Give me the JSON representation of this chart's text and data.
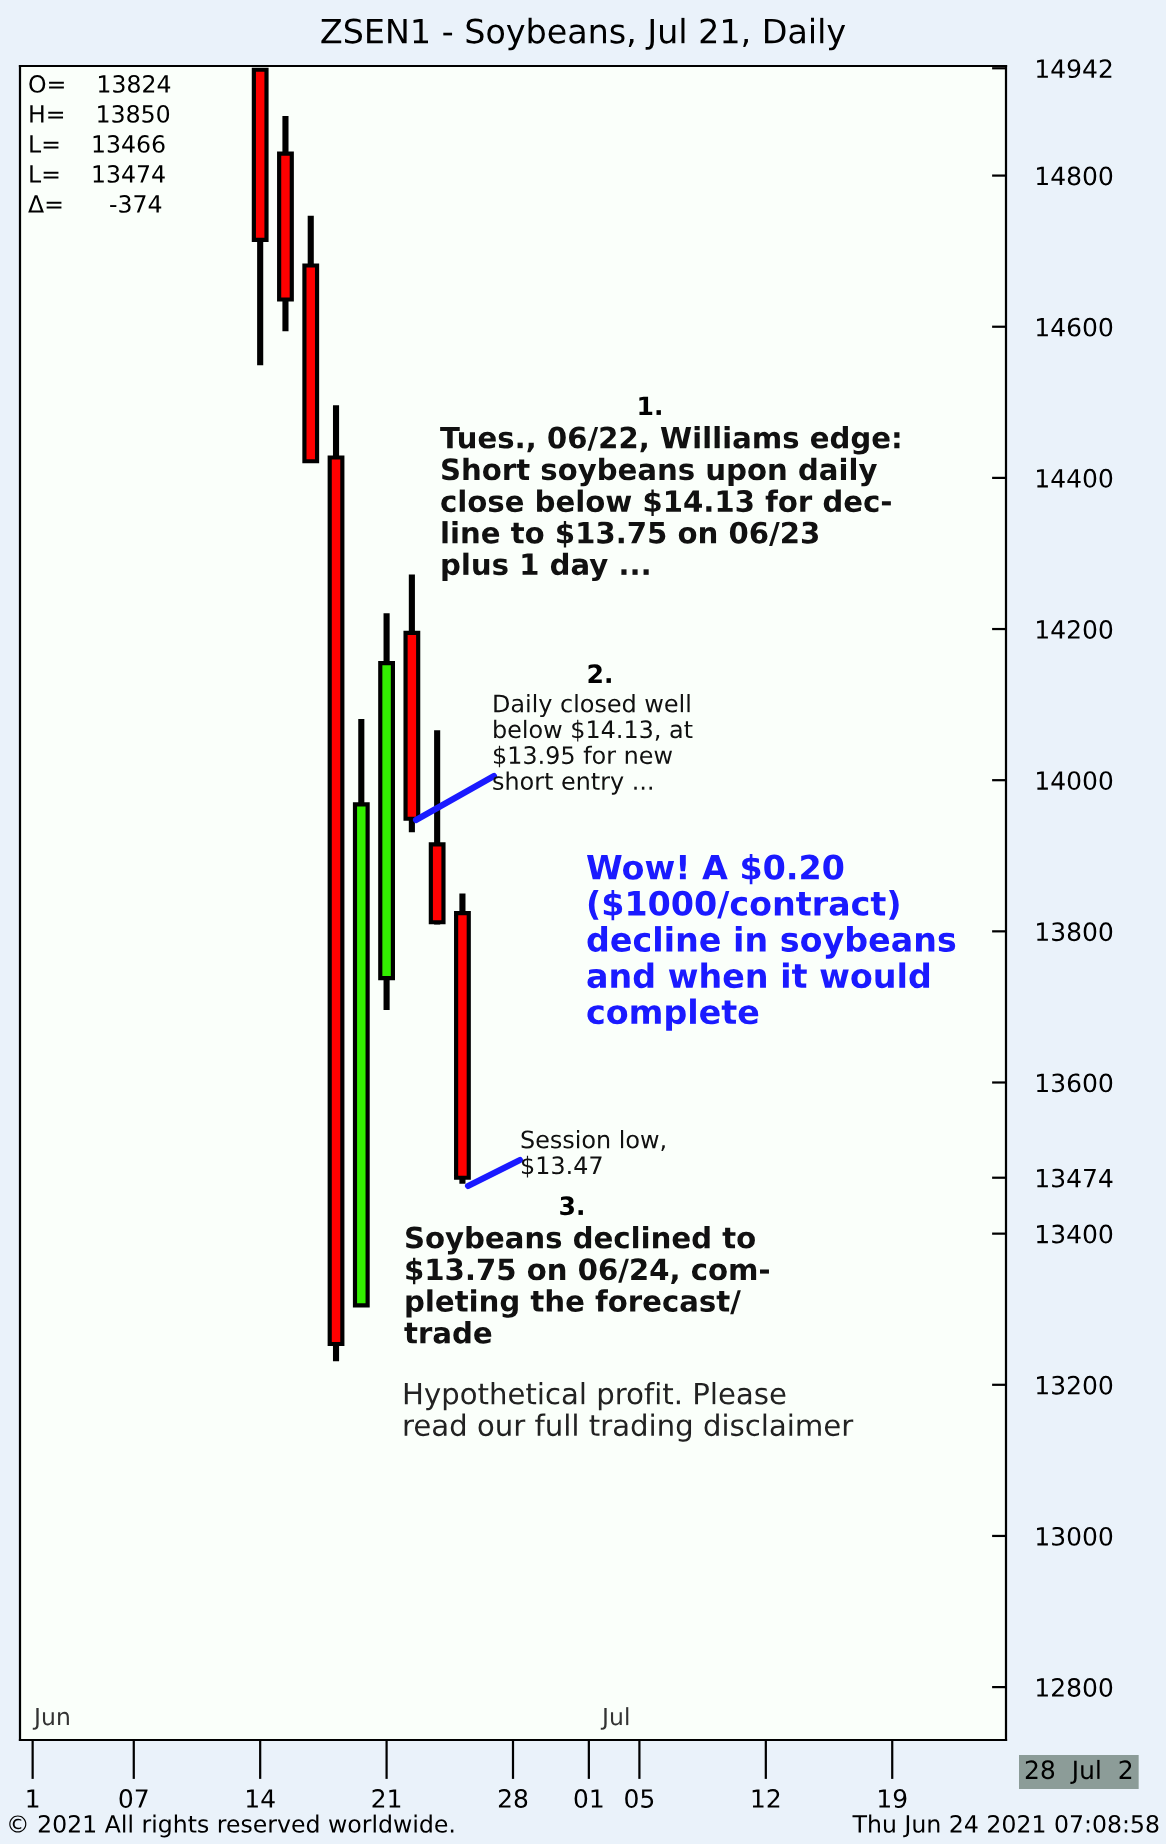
{
  "chart_data": {
    "type": "candlestick",
    "title": "ZSEN1 - Soybeans, Jul 21, Daily",
    "categories": [
      "1",
      null,
      null,
      null,
      "07",
      null,
      null,
      null,
      null,
      "14",
      null,
      null,
      null,
      null,
      "21",
      null,
      null,
      null,
      null,
      "28",
      null,
      null,
      "01",
      null,
      "05",
      null,
      null,
      null,
      null,
      "12",
      null,
      null,
      null,
      null,
      "19",
      null,
      null,
      null,
      null
    ],
    "ohlc": [
      null,
      null,
      null,
      null,
      null,
      null,
      null,
      null,
      null,
      [
        14940,
        14940,
        14549,
        14715
      ],
      [
        14829,
        14879,
        14594,
        14636
      ],
      [
        14681,
        14747,
        14422,
        14422
      ],
      [
        14427,
        14496,
        13231,
        13254
      ],
      [
        13305,
        14081,
        13305,
        13968
      ],
      [
        13738,
        14221,
        13696,
        14155
      ],
      [
        14195,
        14272,
        13931,
        13949
      ],
      [
        13915,
        14066,
        13809,
        13812
      ],
      [
        13824,
        13850,
        13466,
        13474
      ],
      null,
      null,
      null,
      null,
      null,
      null,
      null,
      null,
      null,
      null,
      null,
      null,
      null,
      null,
      null,
      null,
      null,
      null,
      null,
      null,
      null
    ],
    "colors": [
      null,
      null,
      null,
      null,
      null,
      null,
      null,
      null,
      null,
      "#ff0000",
      "#ff0000",
      "#ff0000",
      "#ff0000",
      "#33ee00",
      "#33ee00",
      "#ff0000",
      "#ff0000",
      "#ff0000",
      null,
      null,
      null,
      null,
      null,
      null,
      null,
      null,
      null,
      null,
      null,
      null,
      null,
      null,
      null,
      null,
      null,
      null,
      null,
      null,
      null
    ],
    "ylim": [
      12730,
      14945
    ],
    "yticks": [
      12800,
      13000,
      13200,
      13400,
      13474,
      13600,
      13800,
      14000,
      14200,
      14400,
      14600,
      14800,
      14942
    ],
    "annotations": [
      "O=    13824",
      "H=    13850",
      "L=    13466",
      "L=    13474",
      "Δ=      -374",
      "1.",
      "Tues., 06/22, Williams edge:\nShort soybeans upon daily\nclose below $14.13 for dec-\nline to $13.75 on 06/23\nplus 1 day ...",
      "2.",
      "Daily closed well\nbelow $14.13, at\n$13.95 for new\nshort entry ...",
      "Wow! A $0.20\n($1000/contract)\ndecline in soybeans\nand when it would\ncomplete",
      "Session low,\n$13.47",
      "3.",
      "Soybeans declined to\n$13.75 on 06/24, com-\npleting the forecast/\ntrade",
      "Hypothetical profit. Please\nread our full trading disclaimer",
      "Jun",
      "Jul",
      "28  Jul  2",
      "© 2021 All rights reserved worldwide.",
      "Thu Jun 24 2021 07:08:58"
    ]
  }
}
